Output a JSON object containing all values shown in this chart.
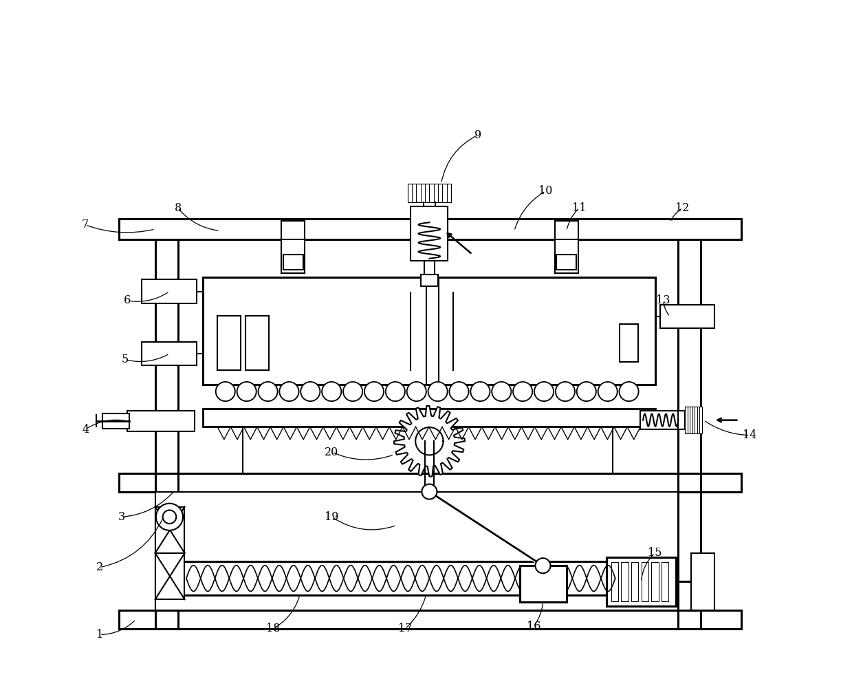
{
  "bg_color": "#ffffff",
  "line_color": "#000000",
  "lw": 1.5,
  "tlw": 2.2,
  "fig_width": 12.39,
  "fig_height": 9.84,
  "xlim": [
    0,
    10
  ],
  "ylim": [
    0,
    8
  ]
}
